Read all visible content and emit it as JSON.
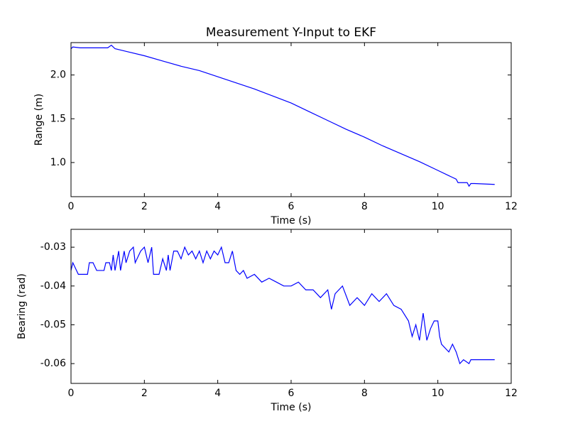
{
  "chart_data": [
    {
      "type": "line",
      "title": "Measurement Y-Input to EKF",
      "xlabel": "Time (s)",
      "ylabel": "Range (m)",
      "x": [
        0,
        0.05,
        0.25,
        0.5,
        0.75,
        1.0,
        1.1,
        1.2,
        1.5,
        2.0,
        2.5,
        3.0,
        3.5,
        4.0,
        4.5,
        5.0,
        5.5,
        6.0,
        6.5,
        7.0,
        7.5,
        8.0,
        8.5,
        9.0,
        9.5,
        10.0,
        10.3,
        10.5,
        10.55,
        10.8,
        10.85,
        10.9,
        11.0,
        11.55
      ],
      "values": [
        2.3,
        2.32,
        2.31,
        2.31,
        2.31,
        2.31,
        2.34,
        2.3,
        2.27,
        2.22,
        2.16,
        2.1,
        2.05,
        1.98,
        1.91,
        1.84,
        1.76,
        1.68,
        1.58,
        1.48,
        1.38,
        1.29,
        1.19,
        1.1,
        1.01,
        0.91,
        0.85,
        0.81,
        0.77,
        0.77,
        0.73,
        0.76,
        0.76,
        0.75
      ],
      "color": "#0000ff",
      "xlim": [
        0,
        12
      ],
      "xticks": [
        0,
        2,
        4,
        6,
        8,
        10,
        12
      ],
      "ylim": [
        0.61,
        2.37
      ],
      "yticks": [
        {
          "value": 1,
          "label": "1.0"
        },
        1.5,
        {
          "value": 2,
          "label": "2.0"
        }
      ]
    },
    {
      "type": "line",
      "xlabel": "Time (s)",
      "ylabel": "Bearing (rad)",
      "x": [
        0,
        0.05,
        0.2,
        0.45,
        0.5,
        0.6,
        0.7,
        0.9,
        0.95,
        1.05,
        1.1,
        1.15,
        1.2,
        1.3,
        1.35,
        1.45,
        1.5,
        1.6,
        1.7,
        1.75,
        1.8,
        1.9,
        2.0,
        2.1,
        2.2,
        2.25,
        2.4,
        2.5,
        2.6,
        2.65,
        2.7,
        2.8,
        2.9,
        3.0,
        3.1,
        3.2,
        3.3,
        3.4,
        3.5,
        3.6,
        3.7,
        3.8,
        3.9,
        4.0,
        4.1,
        4.2,
        4.3,
        4.4,
        4.5,
        4.6,
        4.7,
        4.8,
        5.0,
        5.2,
        5.4,
        5.6,
        5.8,
        6.0,
        6.2,
        6.4,
        6.6,
        6.8,
        7.0,
        7.1,
        7.2,
        7.4,
        7.6,
        7.8,
        8.0,
        8.2,
        8.4,
        8.6,
        8.8,
        9.0,
        9.2,
        9.3,
        9.4,
        9.5,
        9.6,
        9.7,
        9.8,
        9.9,
        10.0,
        10.05,
        10.1,
        10.3,
        10.4,
        10.5,
        10.6,
        10.7,
        10.85,
        10.9,
        11.55
      ],
      "values": [
        -0.036,
        -0.034,
        -0.037,
        -0.037,
        -0.034,
        -0.034,
        -0.036,
        -0.036,
        -0.034,
        -0.034,
        -0.036,
        -0.032,
        -0.036,
        -0.031,
        -0.036,
        -0.031,
        -0.034,
        -0.031,
        -0.03,
        -0.034,
        -0.033,
        -0.031,
        -0.03,
        -0.034,
        -0.03,
        -0.037,
        -0.037,
        -0.033,
        -0.036,
        -0.032,
        -0.036,
        -0.031,
        -0.031,
        -0.033,
        -0.03,
        -0.032,
        -0.031,
        -0.033,
        -0.031,
        -0.034,
        -0.031,
        -0.033,
        -0.031,
        -0.032,
        -0.03,
        -0.034,
        -0.034,
        -0.031,
        -0.036,
        -0.037,
        -0.036,
        -0.038,
        -0.037,
        -0.039,
        -0.038,
        -0.039,
        -0.04,
        -0.04,
        -0.039,
        -0.041,
        -0.041,
        -0.043,
        -0.041,
        -0.046,
        -0.042,
        -0.04,
        -0.045,
        -0.043,
        -0.045,
        -0.042,
        -0.044,
        -0.042,
        -0.045,
        -0.046,
        -0.049,
        -0.053,
        -0.05,
        -0.054,
        -0.047,
        -0.054,
        -0.051,
        -0.049,
        -0.049,
        -0.053,
        -0.055,
        -0.057,
        -0.055,
        -0.057,
        -0.06,
        -0.059,
        -0.06,
        -0.059,
        -0.059
      ],
      "color": "#0000ff",
      "xlim": [
        0,
        12
      ],
      "xticks": [
        0,
        2,
        4,
        6,
        8,
        10,
        12
      ],
      "ylim": [
        -0.0651,
        -0.0254
      ],
      "yticks": [
        -0.06,
        -0.05,
        -0.04,
        -0.03
      ]
    }
  ]
}
